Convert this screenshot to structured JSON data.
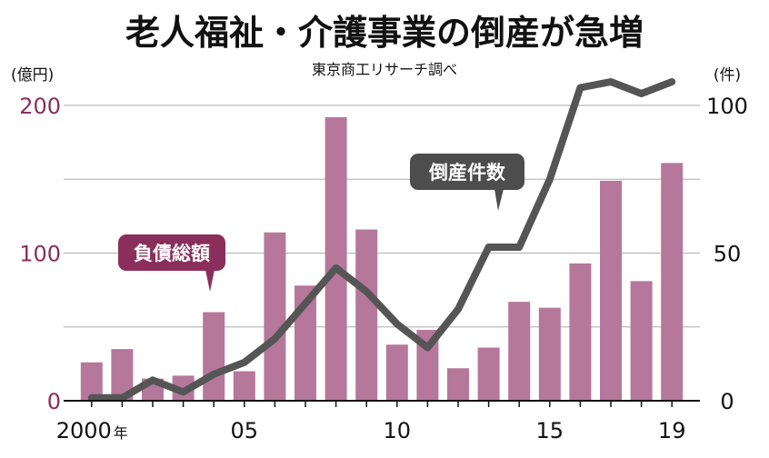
{
  "title": "老人福祉・介護事業の倒産が急増",
  "source": "東京商工リサーチ調べ",
  "chart_data": {
    "type": "bar",
    "x": [
      2000,
      2001,
      2002,
      2003,
      2004,
      2005,
      2006,
      2007,
      2008,
      2009,
      2010,
      2011,
      2012,
      2013,
      2014,
      2015,
      2016,
      2017,
      2018,
      2019
    ],
    "x_tick_labels": [
      {
        "x": 2000,
        "label": "2000",
        "suffix": "年"
      },
      {
        "x": 2005,
        "label": "05"
      },
      {
        "x": 2010,
        "label": "10"
      },
      {
        "x": 2015,
        "label": "15"
      },
      {
        "x": 2019,
        "label": "19"
      }
    ],
    "series": [
      {
        "name": "負債総額",
        "type": "bar",
        "axis": "left",
        "color": "#b5789b",
        "values": [
          26,
          35,
          15,
          17,
          60,
          20,
          114,
          78,
          192,
          116,
          38,
          48,
          22,
          36,
          67,
          63,
          93,
          149,
          81,
          161
        ]
      },
      {
        "name": "倒産件数",
        "type": "line",
        "axis": "right",
        "color": "#555555",
        "values": [
          1,
          1,
          7,
          3,
          9,
          13,
          21,
          33,
          45,
          37,
          26,
          18,
          31,
          52,
          52,
          75,
          106,
          108,
          104,
          108
        ]
      }
    ],
    "y_left": {
      "unit": "(億円)",
      "ylim": [
        0,
        200
      ],
      "ticks": [
        0,
        100,
        200
      ],
      "color": "#8a2f5c"
    },
    "y_right": {
      "unit": "(件)",
      "ylim": [
        0,
        100
      ],
      "ticks": [
        0,
        50,
        100
      ]
    },
    "grid": true,
    "grid_lines": [
      50,
      100,
      150,
      200
    ]
  },
  "colors": {
    "bar": "#b5789b",
    "line": "#555555",
    "bar_label_bg": "#8a2f5c",
    "line_label_bg": "#4d4d4d",
    "grid": "#bbbbbb",
    "accent": "#8a2f5c"
  }
}
